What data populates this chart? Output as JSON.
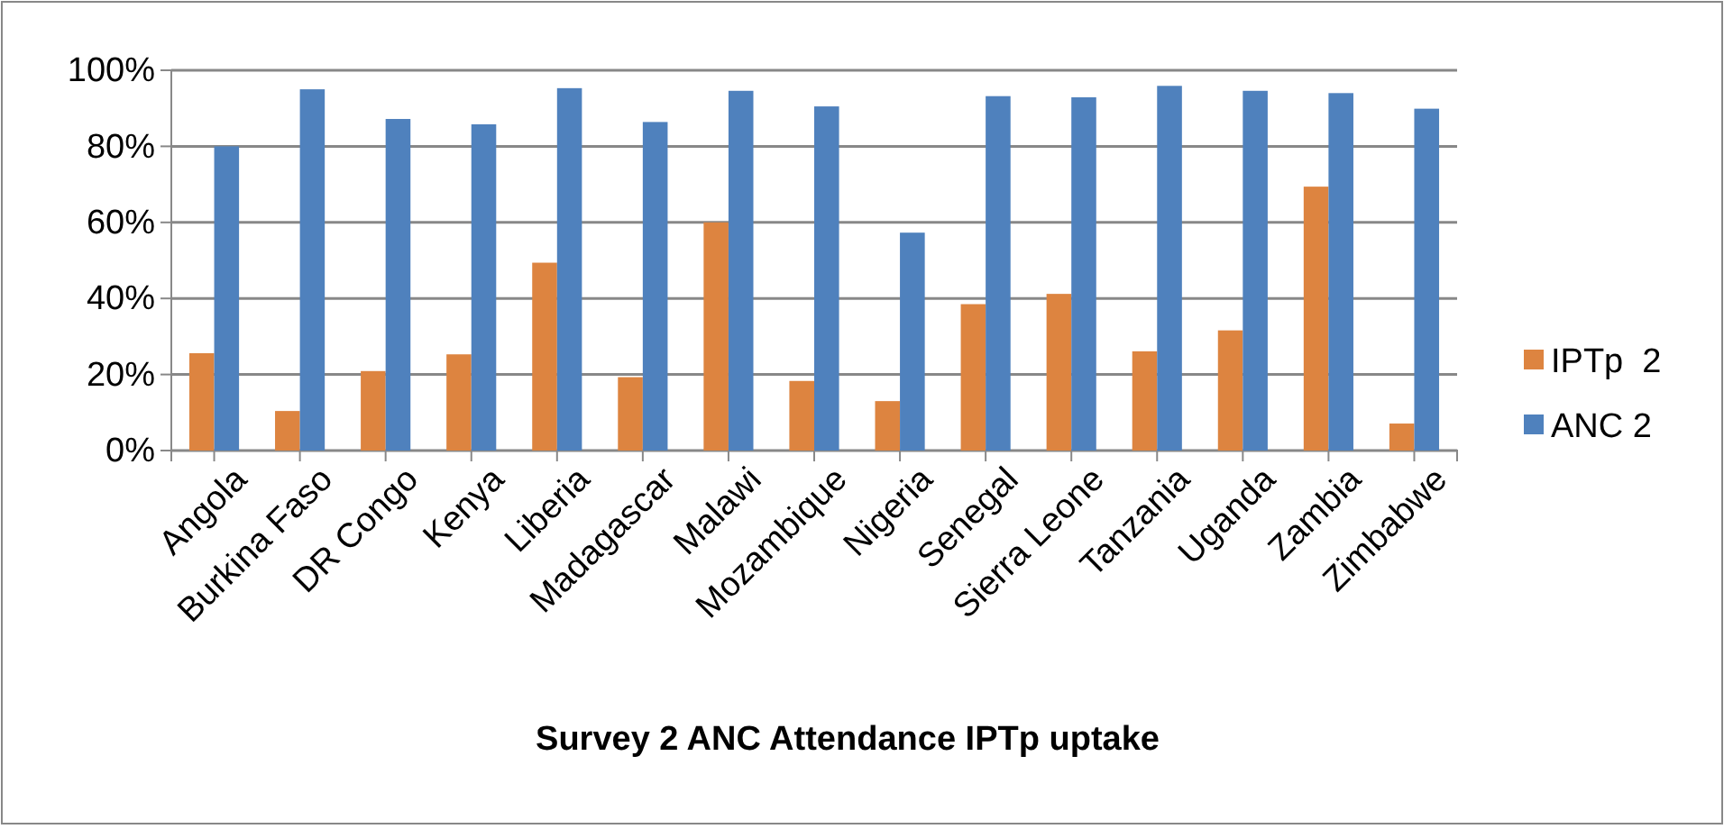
{
  "chart_data": {
    "type": "bar",
    "title": "Survey 2 ANC Attendance IPTp uptake",
    "categories": [
      "Angola",
      "Burkina Faso",
      "DR Congo",
      "Kenya",
      "Liberia",
      "Madagascar",
      "Malawi",
      "Mozambique",
      "Nigeria",
      "Senegal",
      "Sierra Leone",
      "Tanzania",
      "Uganda",
      "Zambia",
      "Zimbabwe"
    ],
    "series": [
      {
        "name": "IPTp  2",
        "color": "#dd8440",
        "values": [
          25.6,
          10.4,
          20.9,
          25.3,
          49.4,
          19.3,
          60,
          18.3,
          13,
          38.5,
          41.2,
          26.1,
          31.6,
          69.4,
          7.1
        ]
      },
      {
        "name": "ANC 2",
        "color": "#4f81bd",
        "values": [
          80,
          95,
          87.2,
          85.8,
          95.3,
          86.4,
          94.6,
          90.5,
          57.3,
          93.2,
          92.9,
          95.9,
          94.6,
          94,
          89.9
        ]
      }
    ],
    "ylim": [
      0,
      100
    ],
    "yticks": [
      {
        "value": 0,
        "label": "0%"
      },
      {
        "value": 20,
        "label": "20%"
      },
      {
        "value": 40,
        "label": "40%"
      },
      {
        "value": 60,
        "label": "60%"
      },
      {
        "value": 80,
        "label": "80%"
      },
      {
        "value": 100,
        "label": "100%"
      }
    ],
    "grid": "y",
    "legend": "right"
  }
}
